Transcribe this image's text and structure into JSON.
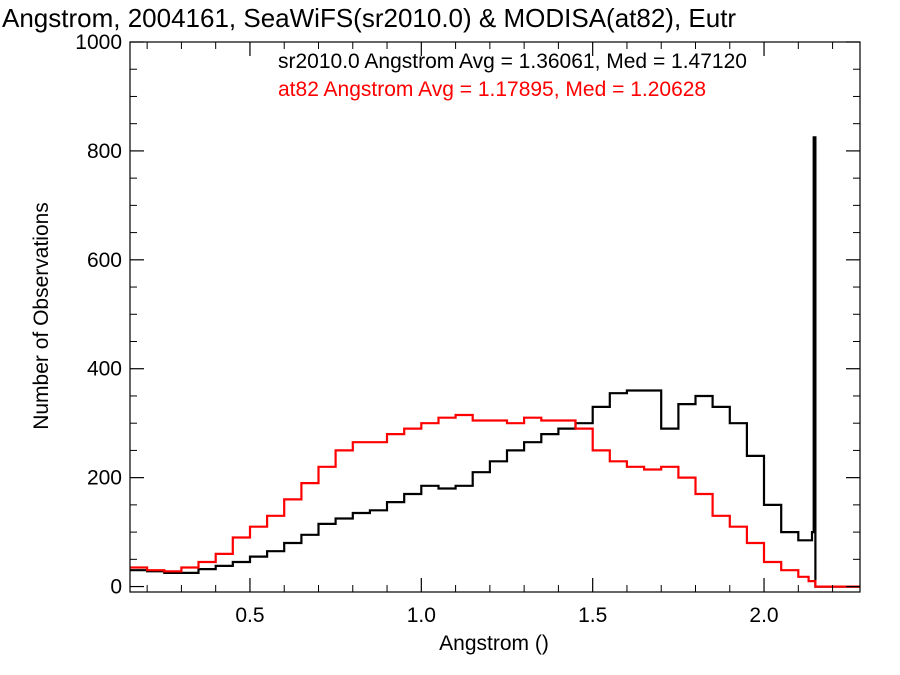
{
  "chart_data": {
    "type": "line",
    "title": "Angstrom, 2004161, SeaWiFS(sr2010.0) & MODISA(at82), Eutr",
    "xlabel": "Angstrom ()",
    "ylabel": "Number of Observations",
    "xlim": [
      0.15,
      2.28
    ],
    "ylim": [
      -10,
      1000
    ],
    "xticks": [
      0.5,
      1.0,
      1.5,
      2.0
    ],
    "xtick_labels": [
      "0.5",
      "1.0",
      "1.5",
      "2.0"
    ],
    "yticks": [
      0,
      200,
      400,
      600,
      800,
      1000
    ],
    "ytick_labels": [
      "0",
      "200",
      "400",
      "600",
      "800",
      "1000"
    ],
    "grid": false,
    "annotations": [
      {
        "text": "sr2010.0 Angstrom Avg = 1.36061, Med = 1.47120",
        "color": "#000000"
      },
      {
        "text": "at82 Angstrom Avg = 1.17895, Med = 1.20628",
        "color": "#ff0000"
      }
    ],
    "series": [
      {
        "name": "sr2010.0",
        "color": "#000000",
        "style": "step",
        "x": [
          0.15,
          0.2,
          0.25,
          0.3,
          0.35,
          0.4,
          0.45,
          0.5,
          0.55,
          0.6,
          0.65,
          0.7,
          0.75,
          0.8,
          0.85,
          0.9,
          0.95,
          1.0,
          1.05,
          1.1,
          1.15,
          1.2,
          1.25,
          1.3,
          1.35,
          1.4,
          1.45,
          1.5,
          1.55,
          1.6,
          1.65,
          1.7,
          1.75,
          1.8,
          1.85,
          1.9,
          1.95,
          2.0,
          2.05,
          2.1,
          2.14,
          2.145,
          2.15,
          2.155,
          2.16,
          2.28
        ],
        "y": [
          30,
          28,
          25,
          25,
          32,
          38,
          45,
          55,
          65,
          80,
          95,
          115,
          125,
          135,
          140,
          155,
          170,
          185,
          180,
          185,
          210,
          230,
          250,
          265,
          280,
          290,
          300,
          330,
          355,
          360,
          360,
          290,
          335,
          350,
          330,
          300,
          240,
          150,
          100,
          85,
          100,
          825,
          0,
          0,
          0,
          0
        ]
      },
      {
        "name": "at82",
        "color": "#ff0000",
        "style": "step",
        "x": [
          0.15,
          0.2,
          0.25,
          0.3,
          0.35,
          0.4,
          0.45,
          0.5,
          0.55,
          0.6,
          0.65,
          0.7,
          0.75,
          0.8,
          0.85,
          0.9,
          0.95,
          1.0,
          1.05,
          1.1,
          1.15,
          1.2,
          1.25,
          1.3,
          1.35,
          1.4,
          1.45,
          1.5,
          1.55,
          1.6,
          1.65,
          1.7,
          1.75,
          1.8,
          1.85,
          1.9,
          1.95,
          2.0,
          2.05,
          2.1,
          2.13,
          2.15,
          2.28
        ],
        "y": [
          35,
          30,
          28,
          35,
          45,
          60,
          90,
          110,
          130,
          160,
          190,
          220,
          250,
          265,
          265,
          280,
          290,
          300,
          310,
          315,
          305,
          305,
          300,
          310,
          305,
          305,
          290,
          250,
          230,
          220,
          215,
          220,
          200,
          170,
          130,
          110,
          80,
          45,
          30,
          18,
          10,
          0,
          0
        ]
      }
    ]
  }
}
